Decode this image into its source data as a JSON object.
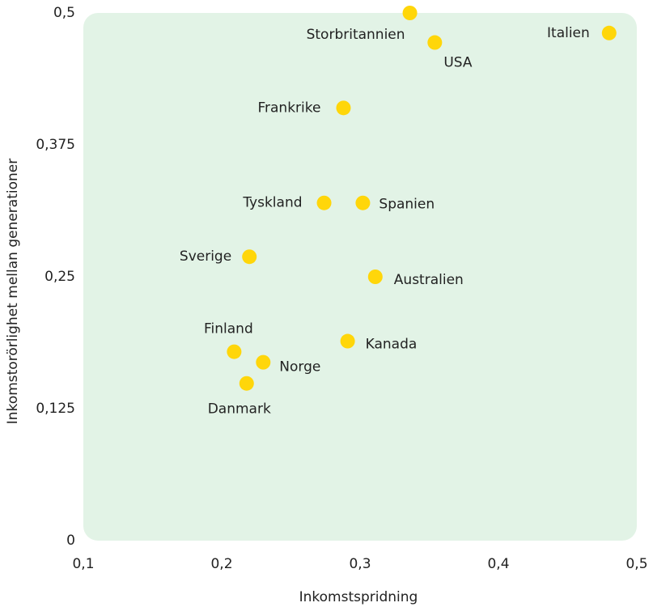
{
  "chart_data": {
    "type": "scatter",
    "x_label": "Inkomstspridning",
    "y_label": "Inkomstorörlighet mellan generationer",
    "color": "#ffd60a",
    "background": "#e2f3e6",
    "xlim": [
      0.1,
      0.5
    ],
    "ylim": [
      0,
      0.5
    ],
    "xticks": [
      {
        "value": 0.1,
        "label": "0,1"
      },
      {
        "value": 0.2,
        "label": "0,2"
      },
      {
        "value": 0.3,
        "label": "0,3"
      },
      {
        "value": 0.4,
        "label": "0,4"
      },
      {
        "value": 0.5,
        "label": "0,5"
      }
    ],
    "yticks": [
      0,
      {
        "value": 0.125,
        "label": "0,125"
      },
      {
        "value": 0.25,
        "label": "0,25"
      },
      {
        "value": 0.375,
        "label": "0,375"
      },
      {
        "value": 0.5,
        "label": "0,5"
      }
    ],
    "labels": [
      "Storbritannien",
      "USA",
      "Italien",
      "Frankrike",
      "Tyskland",
      "Spanien",
      "Sverige",
      "Australien",
      "Kanada",
      "Finland",
      "Norge",
      "Danmark"
    ],
    "x": [
      0.336,
      0.354,
      0.48,
      0.288,
      0.274,
      0.302,
      0.22,
      0.311,
      0.291,
      0.209,
      0.23,
      0.218
    ],
    "values": [
      0.5,
      0.472,
      0.481,
      0.41,
      0.32,
      0.32,
      0.269,
      0.25,
      0.189,
      0.179,
      0.169,
      0.149
    ]
  }
}
